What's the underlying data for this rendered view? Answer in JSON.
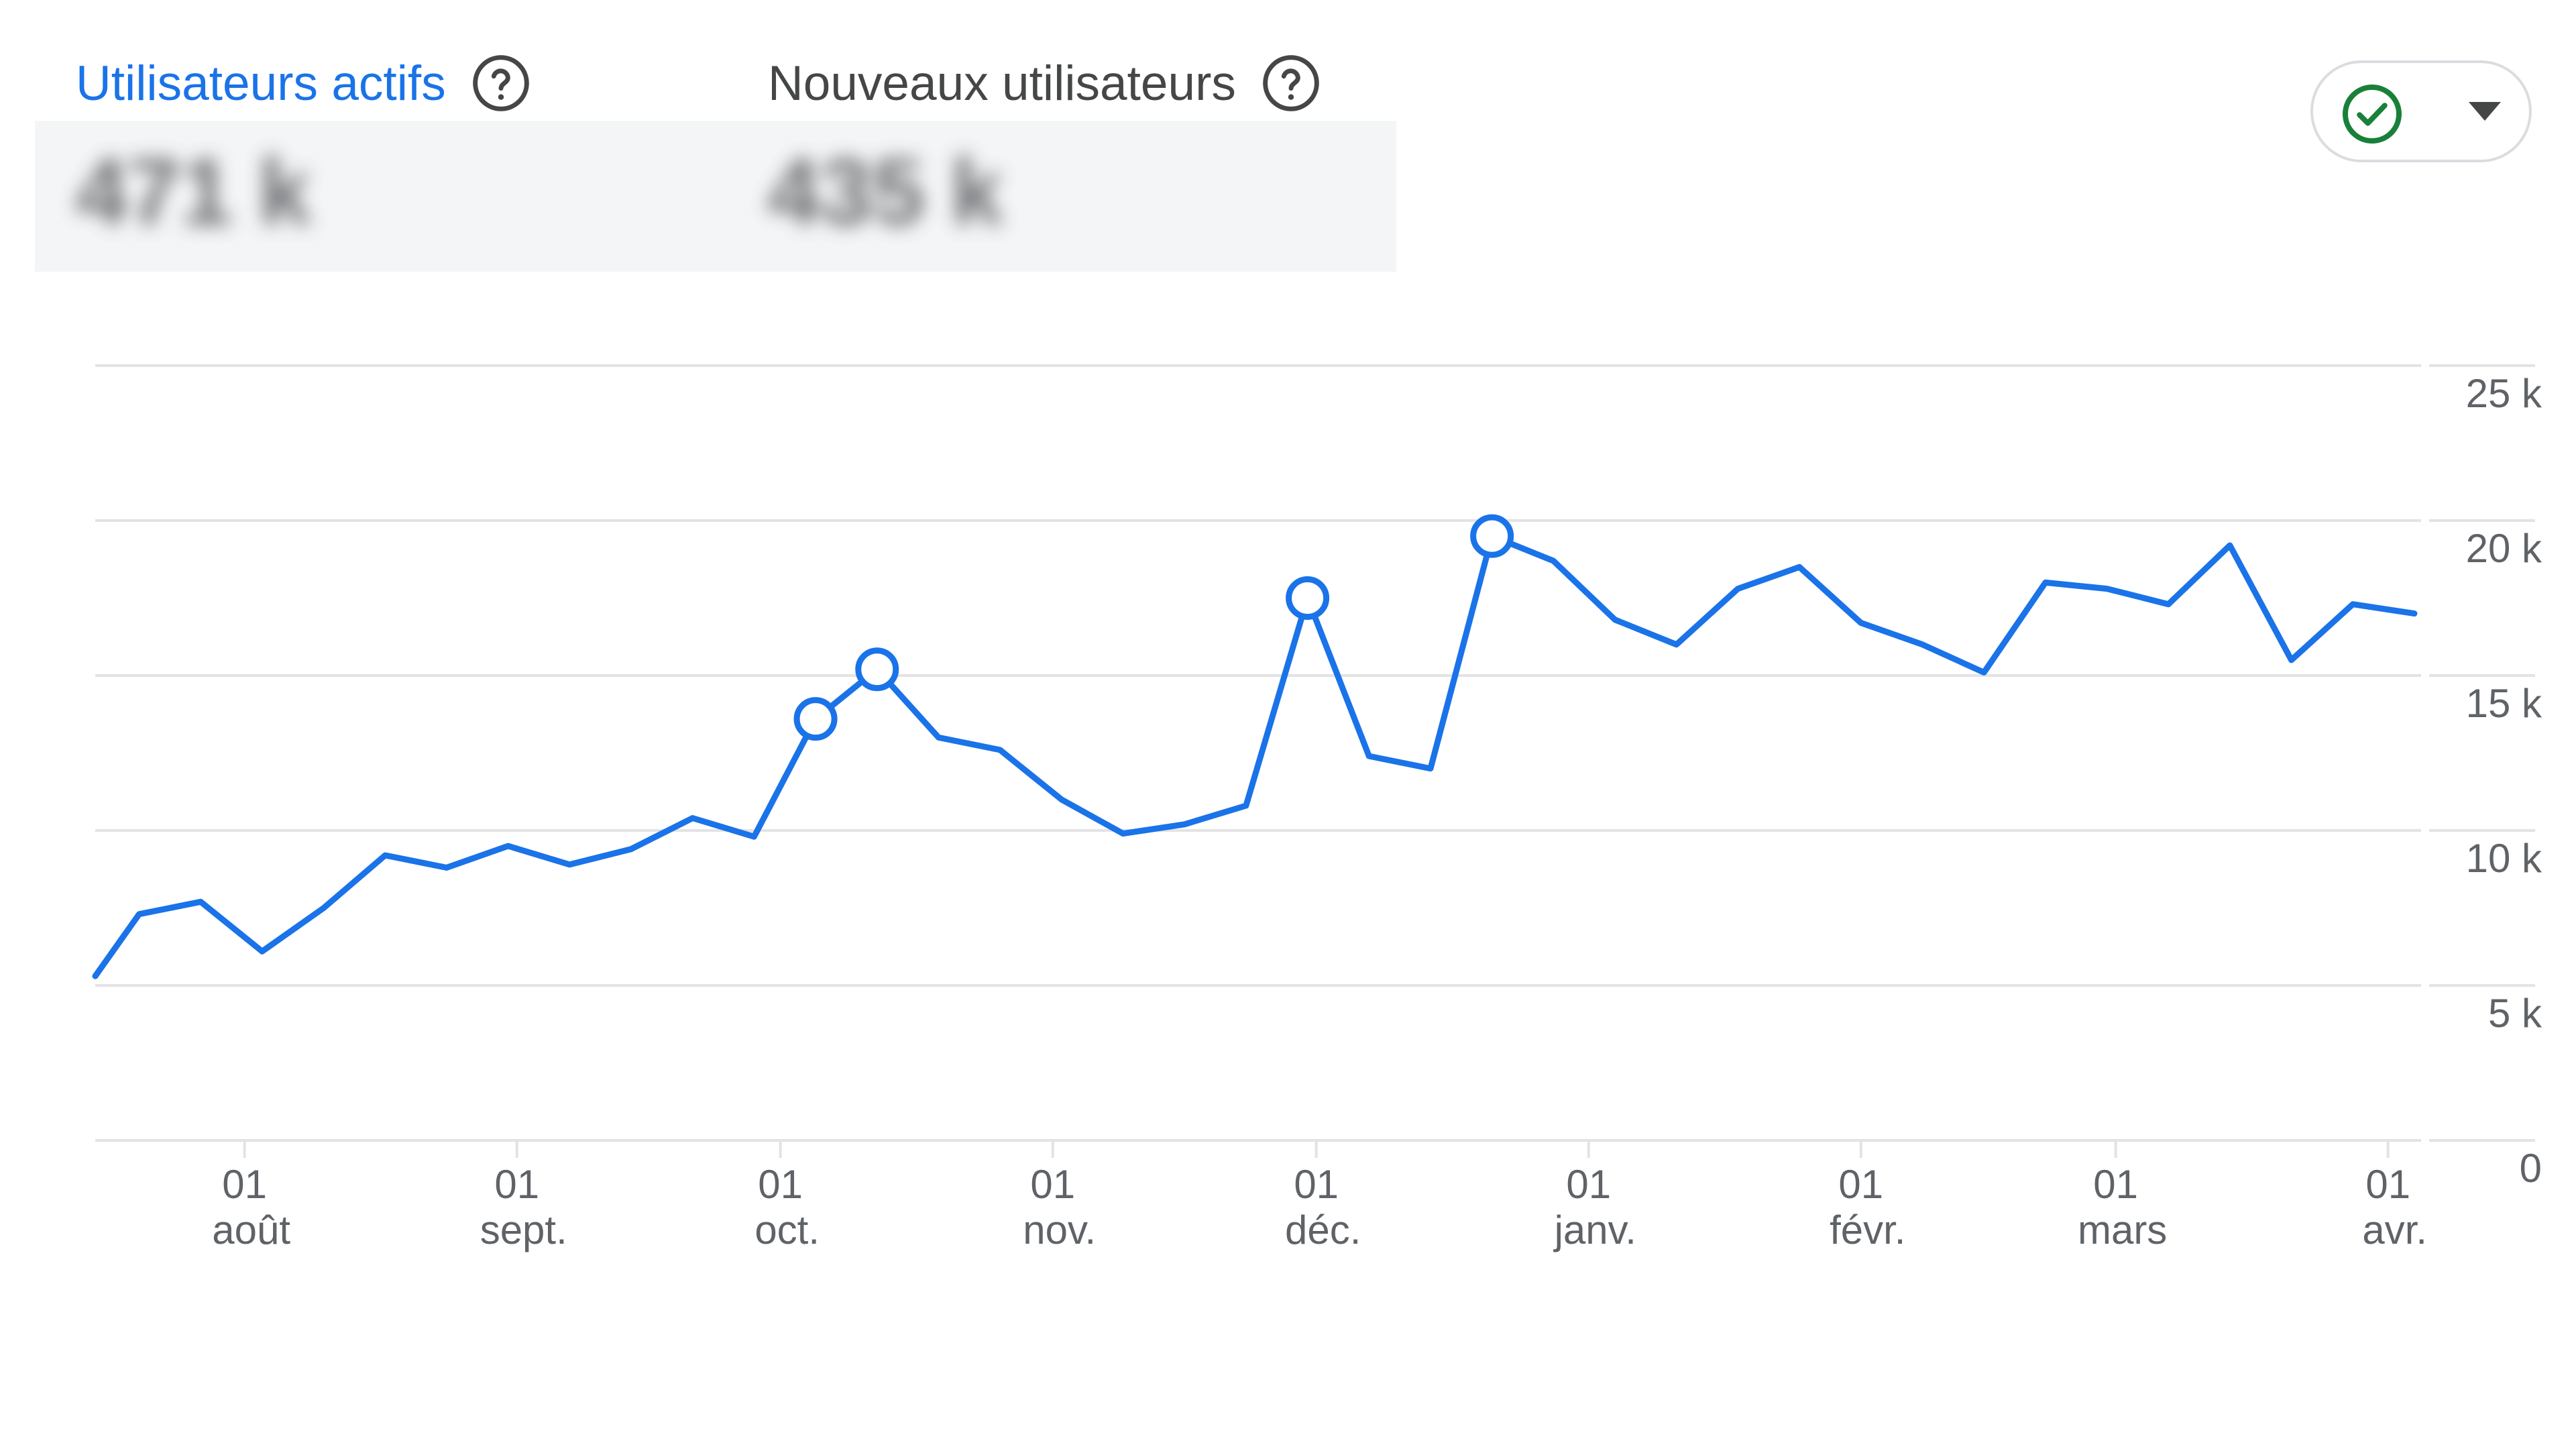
{
  "header": {
    "metric_active": {
      "label": "Utilisateurs actifs",
      "value": "471 k",
      "icon": "help-circle-icon"
    },
    "metric_new": {
      "label": "Nouveaux utilisateurs",
      "value": "435 k",
      "icon": "help-circle-icon"
    },
    "comparison_toggle": {
      "icon": "check-circle-icon",
      "dropdown_icon": "caret-down-icon",
      "check_color": "#188038"
    }
  },
  "colors": {
    "line": "#1a73e8",
    "grid": "#e3e3e3",
    "active_label": "#1a73e8"
  },
  "chart_data": {
    "type": "line",
    "title": "",
    "xlabel": "",
    "ylabel": "",
    "ylim": [
      0,
      25000
    ],
    "y_ticks": [
      {
        "value": 0,
        "label": "0"
      },
      {
        "value": 5000,
        "label": "5 k"
      },
      {
        "value": 10000,
        "label": "10 k"
      },
      {
        "value": 15000,
        "label": "15 k"
      },
      {
        "value": 20000,
        "label": "20 k"
      },
      {
        "value": 25000,
        "label": "25 k"
      }
    ],
    "x_axis": "weekly, 2023-07-15 to 2024-04-21",
    "x_ticks": [
      {
        "date": "2023-08-01",
        "day": "01",
        "month": "août"
      },
      {
        "date": "2023-09-01",
        "day": "01",
        "month": "sept."
      },
      {
        "date": "2023-10-01",
        "day": "01",
        "month": "oct."
      },
      {
        "date": "2023-11-01",
        "day": "01",
        "month": "nov."
      },
      {
        "date": "2023-12-01",
        "day": "01",
        "month": "déc."
      },
      {
        "date": "2024-01-01",
        "day": "01",
        "month": "janv."
      },
      {
        "date": "2024-02-01",
        "day": "01",
        "month": "févr."
      },
      {
        "date": "2024-03-01",
        "day": "01",
        "month": "mars"
      },
      {
        "date": "2024-04-01",
        "day": "01",
        "month": "avr."
      }
    ],
    "series": [
      {
        "color": "#1a73e8",
        "points": [
          {
            "x": "2023-07-15",
            "y": 5300
          },
          {
            "x": "2023-07-20",
            "y": 7300
          },
          {
            "x": "2023-07-27",
            "y": 7700
          },
          {
            "x": "2023-08-03",
            "y": 6100
          },
          {
            "x": "2023-08-10",
            "y": 7500
          },
          {
            "x": "2023-08-17",
            "y": 9200
          },
          {
            "x": "2023-08-24",
            "y": 8800
          },
          {
            "x": "2023-08-31",
            "y": 9500
          },
          {
            "x": "2023-09-07",
            "y": 8900
          },
          {
            "x": "2023-09-14",
            "y": 9400
          },
          {
            "x": "2023-09-21",
            "y": 10400
          },
          {
            "x": "2023-09-28",
            "y": 9800
          },
          {
            "x": "2023-10-05",
            "y": 13600,
            "annotated": true
          },
          {
            "x": "2023-10-12",
            "y": 15200,
            "annotated": true
          },
          {
            "x": "2023-10-19",
            "y": 13000
          },
          {
            "x": "2023-10-26",
            "y": 12600
          },
          {
            "x": "2023-11-02",
            "y": 11000
          },
          {
            "x": "2023-11-09",
            "y": 9900
          },
          {
            "x": "2023-11-16",
            "y": 10200
          },
          {
            "x": "2023-11-23",
            "y": 10800
          },
          {
            "x": "2023-11-30",
            "y": 17500,
            "annotated": true
          },
          {
            "x": "2023-12-07",
            "y": 12400
          },
          {
            "x": "2023-12-14",
            "y": 12000
          },
          {
            "x": "2023-12-21",
            "y": 19500,
            "annotated": true
          },
          {
            "x": "2023-12-28",
            "y": 18700
          },
          {
            "x": "2024-01-04",
            "y": 16800
          },
          {
            "x": "2024-01-11",
            "y": 16000
          },
          {
            "x": "2024-01-18",
            "y": 17800
          },
          {
            "x": "2024-01-25",
            "y": 18500
          },
          {
            "x": "2024-02-01",
            "y": 16700
          },
          {
            "x": "2024-02-08",
            "y": 16000
          },
          {
            "x": "2024-02-15",
            "y": 15100
          },
          {
            "x": "2024-02-22",
            "y": 18000
          },
          {
            "x": "2024-02-29",
            "y": 17800
          },
          {
            "x": "2024-03-07",
            "y": 17300
          },
          {
            "x": "2024-03-14",
            "y": 19200
          },
          {
            "x": "2024-03-21",
            "y": 15500
          },
          {
            "x": "2024-03-28",
            "y": 17300
          },
          {
            "x": "2024-04-04",
            "y": 17000
          }
        ]
      }
    ]
  }
}
